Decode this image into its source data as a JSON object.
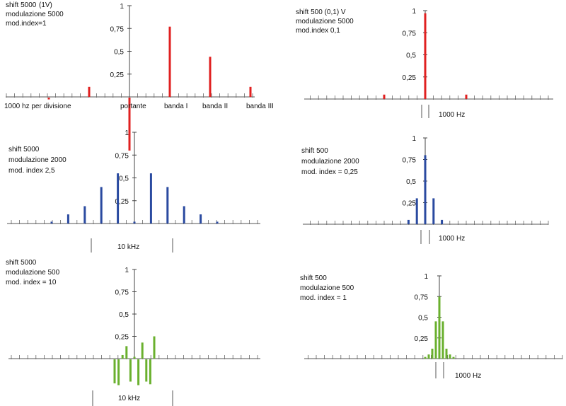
{
  "chart_data": [
    {
      "type": "bar",
      "color": "#e02020",
      "annotations": [
        "shift 5000",
        "modulazione 5000",
        "mod.index=1"
      ],
      "extra_label": "(1V)",
      "y_ticks": [
        "1",
        "0,75",
        "0,5",
        "0,25"
      ],
      "ylim": [
        0,
        1
      ],
      "x_labels": [
        "1000 hz  per divisione",
        "portante",
        "banda I",
        "banda II",
        "banda III"
      ],
      "x": [
        -10,
        -5,
        0,
        5,
        10,
        15
      ],
      "values": [
        0.02,
        0.11,
        0.58,
        0.77,
        0.44,
        0.11
      ],
      "polarity": [
        -1,
        1,
        -1,
        1,
        1,
        1
      ],
      "span_label": ""
    },
    {
      "type": "bar",
      "color": "#e02020",
      "annotations": [
        "shift 500  (0,1) V",
        "modulazione 5000",
        "mod.index 0,1"
      ],
      "extra_label": "",
      "y_ticks": [
        "1",
        "0,75",
        "0,5",
        "0,25"
      ],
      "ylim": [
        0,
        1
      ],
      "x_labels": [],
      "x": [
        -5,
        0,
        5
      ],
      "values": [
        0.05,
        0.97,
        0.05
      ],
      "polarity": [
        1,
        1,
        1
      ],
      "span_label": "1000 Hz"
    },
    {
      "type": "bar",
      "color": "#2a4aa0",
      "annotations": [
        "shift 5000",
        "modulazione 2000",
        "mod. index 2,5"
      ],
      "extra_label": "",
      "y_ticks": [
        "1",
        "0,75",
        "0,5",
        "0,25"
      ],
      "ylim": [
        0,
        1
      ],
      "x_labels": [],
      "x": [
        -10,
        -8,
        -6,
        -4,
        -2,
        0,
        2,
        4,
        6,
        8,
        10
      ],
      "values": [
        0.02,
        0.1,
        0.19,
        0.4,
        0.55,
        0.02,
        0.55,
        0.4,
        0.19,
        0.1,
        0.02
      ],
      "polarity": [
        1,
        1,
        1,
        1,
        1,
        1,
        1,
        1,
        1,
        1,
        1
      ],
      "span_label": "10 kHz"
    },
    {
      "type": "bar",
      "color": "#2a4aa0",
      "annotations": [
        "shift 500",
        "modulazione 2000",
        "mod. index = 0,25"
      ],
      "extra_label": "",
      "y_ticks": [
        "1",
        "0,75",
        "0,5",
        "0,25"
      ],
      "ylim": [
        0,
        1
      ],
      "x_labels": [],
      "x": [
        -2,
        -1,
        0,
        1,
        2
      ],
      "values": [
        0.05,
        0.3,
        0.8,
        0.3,
        0.05
      ],
      "polarity": [
        1,
        1,
        1,
        1,
        1
      ],
      "span_label": "1000 Hz"
    },
    {
      "type": "bar",
      "color": "#6ab02e",
      "annotations": [
        "shift 5000",
        "modulazione 500",
        "mod. index = 10"
      ],
      "extra_label": "",
      "y_ticks": [
        "1",
        "0,75",
        "0,5",
        "0,25"
      ],
      "ylim": [
        0,
        1
      ],
      "x_labels": [],
      "x": [
        -2.5,
        -2,
        -1.5,
        -1,
        -0.5,
        0,
        0.5,
        1,
        1.5,
        2,
        2.5
      ],
      "values": [
        0.27,
        0.29,
        0.04,
        0.14,
        0.25,
        0.02,
        0.29,
        0.18,
        0.25,
        0.28,
        0.25
      ],
      "polarity": [
        -1,
        -1,
        1,
        1,
        -1,
        1,
        -1,
        1,
        -1,
        -1,
        1
      ],
      "span_label": "10 kHz"
    },
    {
      "type": "bar",
      "color": "#6ab02e",
      "annotations": [
        "shift 500",
        "modulazione 500",
        "mod. index = 1"
      ],
      "extra_label": "",
      "y_ticks": [
        "1",
        "0,75",
        "0,5",
        "0,25"
      ],
      "ylim": [
        0,
        1
      ],
      "x_labels": [],
      "x": [
        -4,
        -3,
        -2,
        -1,
        0,
        1,
        2,
        3,
        4
      ],
      "values": [
        0.02,
        0.05,
        0.12,
        0.45,
        0.75,
        0.45,
        0.12,
        0.05,
        0.02
      ],
      "polarity": [
        1,
        1,
        1,
        1,
        1,
        1,
        1,
        1,
        1
      ],
      "span_label": "1000 Hz"
    }
  ]
}
